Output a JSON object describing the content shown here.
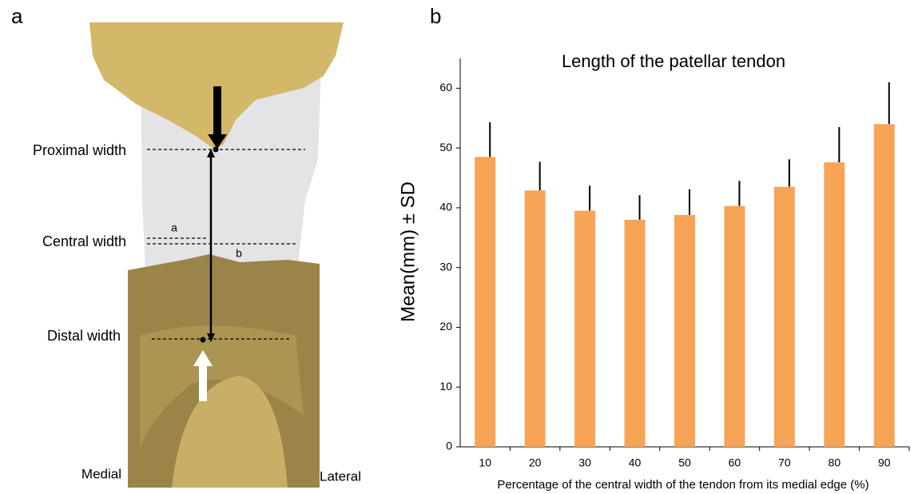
{
  "panel_labels": [
    "a",
    "b"
  ],
  "diagram": {
    "width_labels": [
      "Proximal width",
      "Central width",
      "Distal width"
    ],
    "segment_labels": [
      "a",
      "b"
    ],
    "side_labels": [
      "Medial",
      "Lateral"
    ]
  },
  "chart_data": {
    "type": "bar",
    "title": "Length of the patellar tendon",
    "x_label": "Percentage of the central width of the tendon from its medial edge (%)",
    "y_label": "Mean(mm) ± SD",
    "categories": [
      "10",
      "20",
      "30",
      "40",
      "50",
      "60",
      "70",
      "80",
      "90"
    ],
    "values": [
      48.5,
      42.9,
      39.5,
      38.0,
      38.8,
      40.3,
      43.5,
      47.6,
      54.0
    ],
    "errors": [
      5.8,
      4.8,
      4.2,
      4.1,
      4.3,
      4.2,
      4.6,
      5.9,
      7.0
    ],
    "color": "#f7a456",
    "error_color": "#000000",
    "ylim": [
      0,
      65
    ],
    "yticks": [
      0,
      10,
      20,
      30,
      40,
      50,
      60
    ],
    "grid": false
  }
}
